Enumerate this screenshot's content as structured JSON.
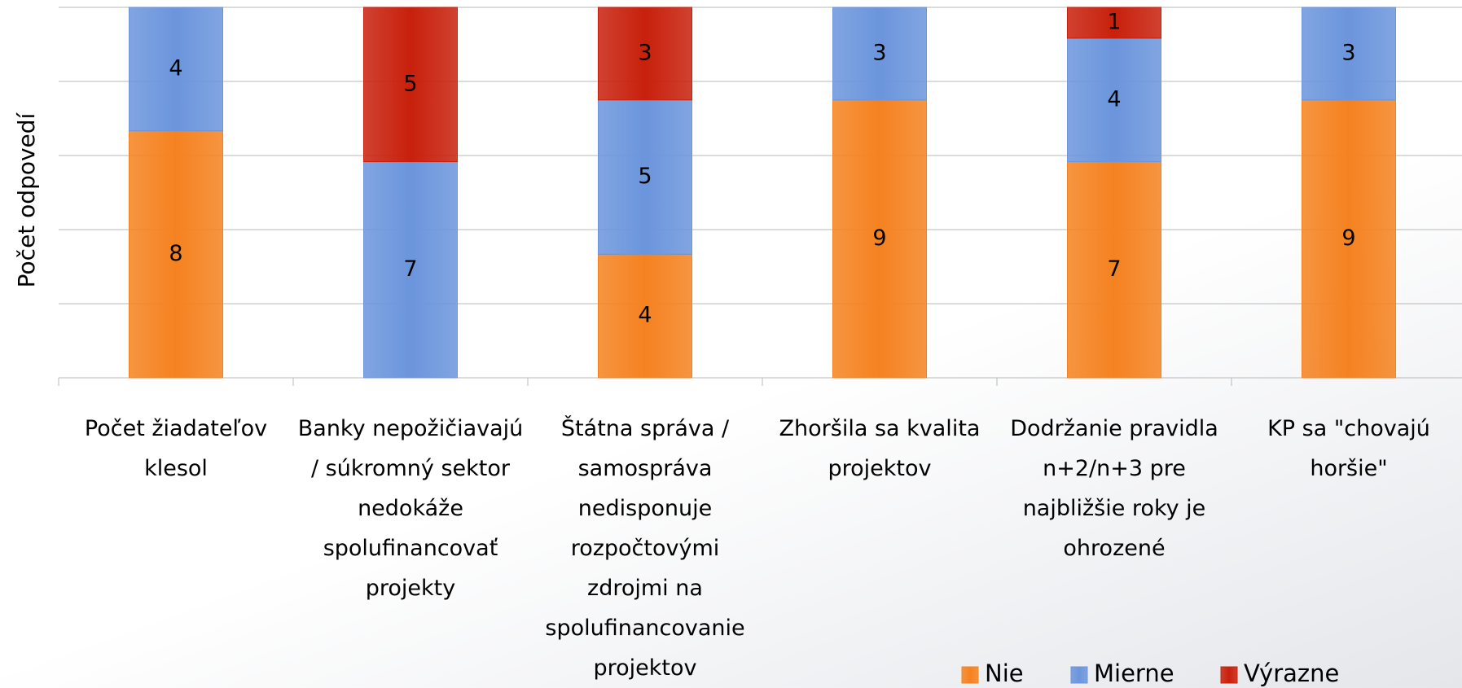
{
  "chart_data": {
    "type": "stacked_bar",
    "y_label": "Počet odpovedí",
    "categories": [
      "Počet žiadateľov klesol",
      "Banky nepožičiavajú / súkromný sektor nedokáže spolufinancovať projekty",
      "Štátna správa / samospráva nedisponuje rozpočtovými zdrojmi na spolufinancovanie projektov",
      "Zhoršila sa kvalita projektov",
      "Dodržanie pravidla n+2/n+3 pre najbližšie roky je ohrozené",
      "KP sa \"chovajú horšie\""
    ],
    "series": [
      {
        "name": "Nie",
        "color": "#f58220",
        "values": [
          8,
          0,
          4,
          9,
          7,
          9
        ]
      },
      {
        "name": "Mierne",
        "color": "#6b95dc",
        "values": [
          4,
          7,
          5,
          3,
          4,
          3
        ]
      },
      {
        "name": "Výrazne",
        "color": "#c8200c",
        "values": [
          0,
          5,
          3,
          0,
          1,
          0
        ]
      }
    ],
    "ylim": [
      0,
      12
    ],
    "yticks": [
      0,
      2.4,
      4.8,
      7.2,
      9.6,
      12
    ],
    "grid": true,
    "legend": "bottom-right"
  }
}
